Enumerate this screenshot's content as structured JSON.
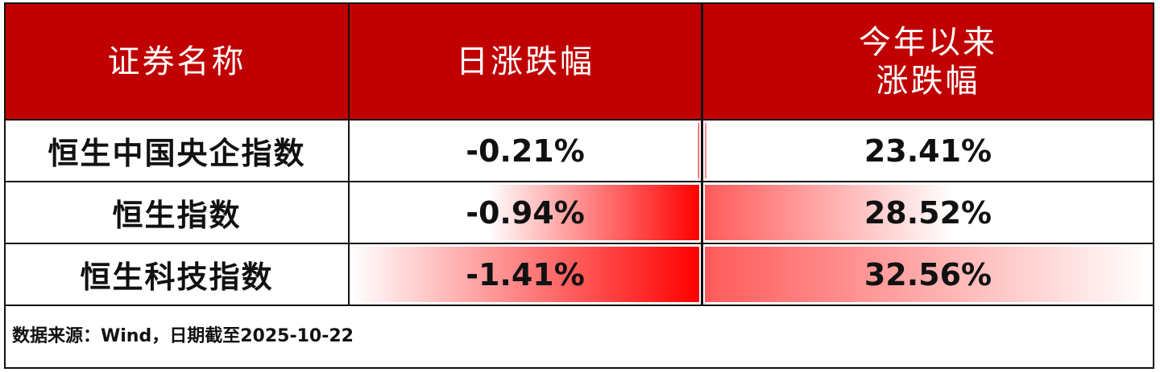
{
  "chart_data": {
    "type": "table",
    "columns": [
      "证券名称",
      "日涨跌幅",
      "今年以来\n涨跌幅"
    ],
    "rows": [
      {
        "name": "恒生中国央企指数",
        "daily": "-0.21%",
        "daily_value": -0.21,
        "ytd": "23.41%",
        "ytd_value": 23.41
      },
      {
        "name": "恒生指数",
        "daily": "-0.94%",
        "daily_value": -0.94,
        "ytd": "28.52%",
        "ytd_value": 28.52
      },
      {
        "name": "恒生科技指数",
        "daily": "-1.41%",
        "daily_value": -1.41,
        "ytd": "32.56%",
        "ytd_value": 32.56
      }
    ],
    "data_bars": {
      "daily_color": "#FF0000",
      "ytd_color": "#FF5A5A",
      "style": "gradient"
    },
    "footnote": "数据来源：Wind，日期截至2025-10-22"
  },
  "colors": {
    "header_bg": "#C00000",
    "header_text": "#FFFFFF"
  }
}
